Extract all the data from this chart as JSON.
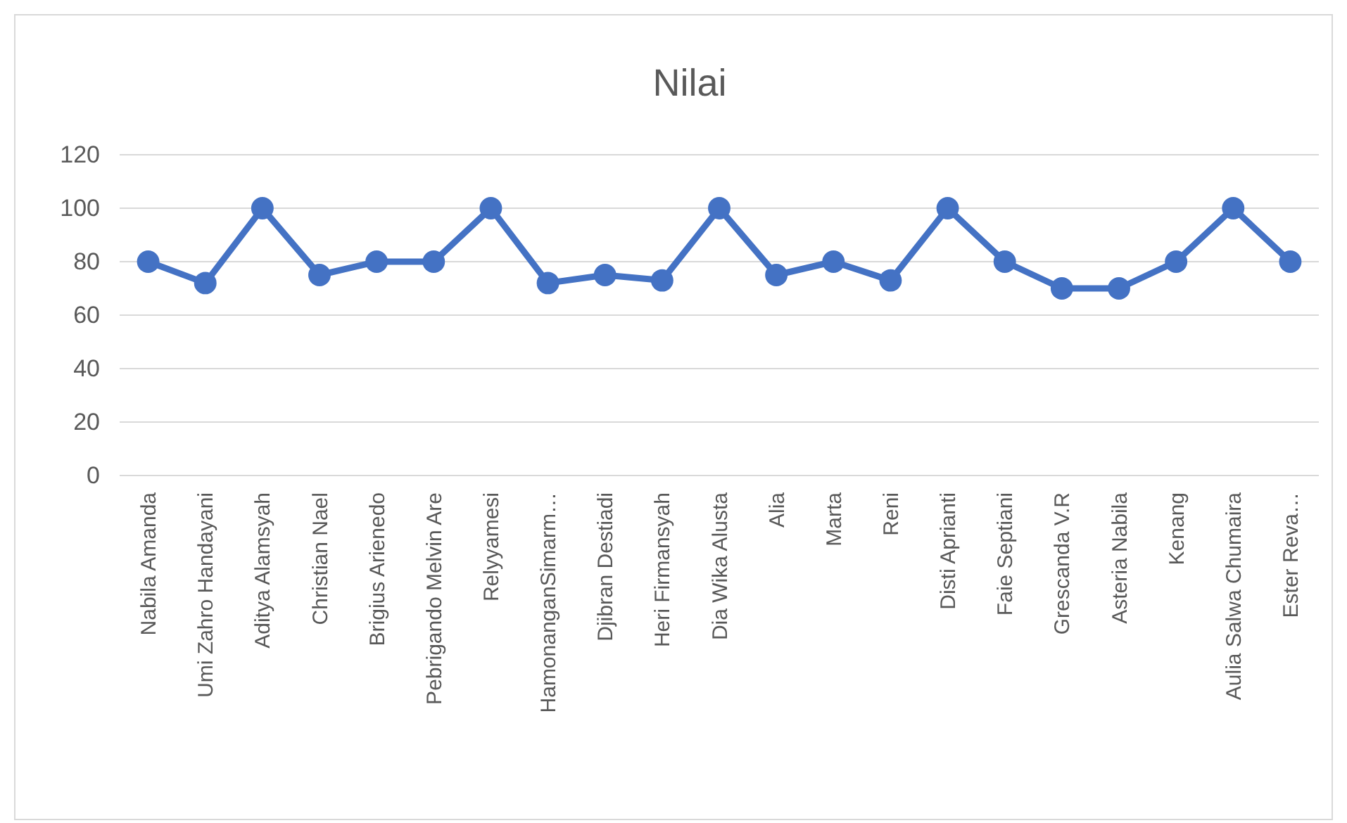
{
  "chart_data": {
    "type": "line",
    "title": "Nilai",
    "categories": [
      "Nabila Amanda",
      "Umi Zahro Handayani",
      "Aditya Alamsyah",
      "Christian Nael",
      "Brigius Arienedo",
      "Pebrigando Melvin Are",
      "Relyyamesi",
      "HamonanganSimarm…",
      "Djibran Destiadi",
      "Heri Firmansyah",
      "Dia Wika Alusta",
      "Alia",
      "Marta",
      "Reni",
      "Disti Aprianti",
      "Faie Septiani",
      "Grescanda V.R",
      "Asteria Nabila",
      "Kenang",
      "Aulia Salwa Chumaira",
      "Ester Reva…"
    ],
    "series": [
      {
        "color": "#4472c4",
        "values": [
          80,
          72,
          100,
          75,
          80,
          80,
          100,
          72,
          75,
          73,
          100,
          75,
          80,
          73,
          100,
          80,
          70,
          70,
          80,
          100,
          80
        ]
      }
    ],
    "ylim": [
      0,
      120
    ],
    "yticks": [
      0,
      20,
      40,
      60,
      80,
      100,
      120
    ],
    "grid": "y",
    "marker": "circle",
    "line_style": "solid"
  }
}
